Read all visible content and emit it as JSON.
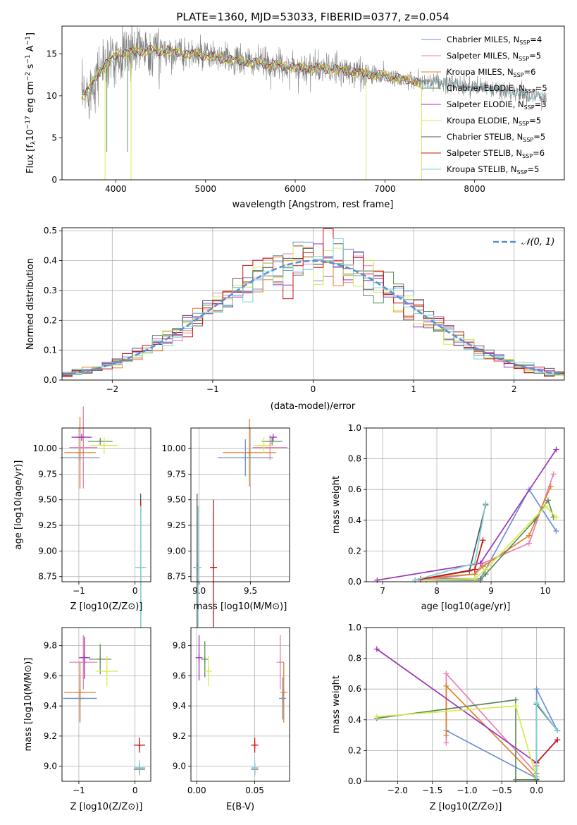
{
  "colors": {
    "series": [
      "#6d8fd8",
      "#e87fb5",
      "#e07f2a",
      "#5c8a5a",
      "#9b35b5",
      "#d4ec4c",
      "#555555",
      "#c81414",
      "#7fd2d8"
    ],
    "gray": "#808080",
    "gauss": "#5b8fd5"
  },
  "chart_data": [
    {
      "id": "spectrum",
      "type": "line",
      "title": "PLATE=1360, MJD=53033, FIBERID=0377, z=0.054",
      "xlabel": "wavelength [Angstrom, rest frame]",
      "ylabel": "Flux [f_λ10^-17 erg cm^-2 s^-1 A^-1]",
      "xlim": [
        3400,
        9000
      ],
      "ylim": [
        0,
        18.3
      ],
      "xticks": [
        4000,
        5000,
        6000,
        7000,
        8000
      ],
      "yticks": [
        0,
        5,
        10,
        15
      ],
      "grid": false,
      "legend_loc": "upper right",
      "series": [
        {
          "name": "Chabrier MILES, N_SSP=4"
        },
        {
          "name": "Salpeter MILES, N_SSP=5"
        },
        {
          "name": "Kroupa MILES, N_SSP=6"
        },
        {
          "name": "Chabrier ELODIE, N_SSP=5"
        },
        {
          "name": "Salpeter ELODIE, N_SSP=3"
        },
        {
          "name": "Kroupa ELODIE, N_SSP=5"
        },
        {
          "name": "Chabrier STELIB, N_SSP=5"
        },
        {
          "name": "Salpeter STELIB, N_SSP=6"
        },
        {
          "name": "Kroupa STELIB, N_SSP=5"
        }
      ],
      "model_curve": {
        "x": [
          3620,
          3700,
          3800,
          3900,
          4000,
          4200,
          4400,
          4600,
          4800,
          5000,
          5200,
          5400,
          5600,
          5800,
          6000,
          6200,
          6400,
          6600,
          6800,
          7000,
          7200,
          7400,
          7600,
          7800,
          8000,
          8200,
          8400,
          8600,
          8800
        ],
        "y": [
          9.8,
          10.6,
          12.8,
          13.8,
          14.9,
          15.3,
          15.4,
          15.3,
          15.0,
          14.8,
          14.4,
          14.1,
          13.9,
          13.6,
          13.4,
          13.3,
          13.2,
          12.9,
          12.6,
          12.4,
          12.0,
          11.6,
          11.5,
          11.3,
          11.0,
          10.8,
          10.4,
          10.1,
          9.7
        ]
      }
    },
    {
      "id": "residuals",
      "type": "line",
      "xlabel": "(data-model)/error",
      "ylabel": "Normed distribution",
      "xlim": [
        -2.5,
        2.5
      ],
      "ylim": [
        0,
        0.51
      ],
      "xticks": [
        -2,
        -1,
        0,
        1,
        2
      ],
      "yticks": [
        0.0,
        0.1,
        0.2,
        0.3,
        0.4,
        0.5
      ],
      "grid": true,
      "legend_loc": "upper right",
      "gauss_label": "𝒩(0, 1)"
    },
    {
      "id": "age_vs_Z",
      "type": "scatter",
      "xlabel": "Z [log10(Z/Z⊙)]",
      "ylabel": "age [log10(age/yr)]",
      "xlim": [
        -1.3,
        0.28
      ],
      "ylim": [
        8.7,
        10.2
      ],
      "xticks": [
        -1,
        0
      ],
      "yticks": [
        8.75,
        9.0,
        9.25,
        9.5,
        9.75,
        10.0
      ],
      "grid": true,
      "points": [
        {
          "x": -0.98,
          "y": 9.91,
          "xerr": 0.35,
          "yerr": 0.0,
          "c": 0
        },
        {
          "x": -0.92,
          "y": 10.01,
          "xerr": 0.25,
          "yerr": 0.4,
          "c": 1
        },
        {
          "x": -0.98,
          "y": 9.96,
          "xerr": 0.28,
          "yerr": 0.35,
          "c": 2
        },
        {
          "x": -0.62,
          "y": 10.07,
          "xerr": 0.22,
          "yerr": 0.0,
          "c": 3
        },
        {
          "x": -0.95,
          "y": 10.11,
          "xerr": 0.18,
          "yerr": 0.0,
          "c": 4
        },
        {
          "x": -0.55,
          "y": 10.03,
          "xerr": 0.25,
          "yerr": 0.08,
          "c": 5
        },
        {
          "x": 0.1,
          "y": 8.84,
          "xerr": 0.0,
          "yerr": 0.72,
          "c": 6
        },
        {
          "x": 0.1,
          "y": 8.84,
          "xerr": 0.0,
          "yerr": 0.66,
          "c": 7
        },
        {
          "x": 0.1,
          "y": 8.84,
          "xerr": 0.1,
          "yerr": 0.6,
          "c": 8
        }
      ]
    },
    {
      "id": "age_vs_mass",
      "type": "scatter",
      "xlabel": "mass [log10(M/M⊙)]",
      "ylabel": "",
      "xlim": [
        8.92,
        9.88
      ],
      "ylim": [
        8.7,
        10.2
      ],
      "xticks": [
        9.0,
        9.5
      ],
      "yticks": [
        8.75,
        9.0,
        9.25,
        9.5,
        9.75,
        10.0
      ],
      "grid": true,
      "points": [
        {
          "x": 9.45,
          "y": 9.91,
          "xerr": 0.27,
          "yerr": 0.18,
          "c": 0
        },
        {
          "x": 9.69,
          "y": 10.01,
          "xerr": 0.17,
          "yerr": 0.12,
          "c": 1
        },
        {
          "x": 9.49,
          "y": 9.96,
          "xerr": 0.26,
          "yerr": 0.33,
          "c": 2
        },
        {
          "x": 9.71,
          "y": 10.07,
          "xerr": 0.1,
          "yerr": 0.0,
          "c": 3
        },
        {
          "x": 9.72,
          "y": 10.11,
          "xerr": 0.0,
          "yerr": 0.0,
          "c": 4
        },
        {
          "x": 9.63,
          "y": 10.03,
          "xerr": 0.1,
          "yerr": 0.08,
          "c": 5
        },
        {
          "x": 8.98,
          "y": 8.84,
          "xerr": 0.0,
          "yerr": 0.72,
          "c": 6
        },
        {
          "x": 9.14,
          "y": 8.84,
          "xerr": 0.03,
          "yerr": 0.66,
          "c": 7
        },
        {
          "x": 8.99,
          "y": 8.84,
          "xerr": 0.03,
          "yerr": 0.6,
          "c": 8
        }
      ]
    },
    {
      "id": "massweight_vs_age",
      "type": "line",
      "xlabel": "age [log10(age/yr)]",
      "ylabel": "mass weight",
      "xlim": [
        6.7,
        10.35
      ],
      "ylim": [
        0,
        1.0
      ],
      "xticks": [
        7,
        8,
        9,
        10
      ],
      "yticks": [
        0.0,
        0.2,
        0.4,
        0.6,
        0.8,
        1.0
      ],
      "grid": true,
      "series": [
        {
          "c": 0,
          "x": [
            7.7,
            8.8,
            8.9,
            9.7,
            10.2
          ],
          "y": [
            0.02,
            0.02,
            0.08,
            0.6,
            0.33
          ]
        },
        {
          "c": 1,
          "x": [
            7.7,
            8.7,
            8.85,
            9.7,
            10.15
          ],
          "y": [
            0.01,
            0.05,
            0.12,
            0.25,
            0.7
          ]
        },
        {
          "c": 2,
          "x": [
            7.7,
            8.7,
            8.85,
            9.7,
            10.1
          ],
          "y": [
            0.02,
            0.05,
            0.1,
            0.3,
            0.62
          ]
        },
        {
          "c": 3,
          "x": [
            7.8,
            8.8,
            8.9,
            9.8,
            10.05,
            10.15
          ],
          "y": [
            0.01,
            0.01,
            0.05,
            0.4,
            0.53,
            0.42
          ]
        },
        {
          "c": 4,
          "x": [
            6.9,
            8.8,
            10.2
          ],
          "y": [
            0.01,
            0.12,
            0.86
          ]
        },
        {
          "c": 5,
          "x": [
            7.8,
            8.7,
            8.9,
            10.0,
            10.2
          ],
          "y": [
            0.01,
            0.02,
            0.08,
            0.49,
            0.42
          ]
        },
        {
          "c": 6,
          "x": [
            7.6,
            8.6,
            8.9
          ],
          "y": [
            0.01,
            0.07,
            0.5
          ]
        },
        {
          "c": 7,
          "x": [
            7.6,
            8.7,
            8.85
          ],
          "y": [
            0.01,
            0.08,
            0.27
          ]
        },
        {
          "c": 8,
          "x": [
            7.6,
            8.7,
            8.9
          ],
          "y": [
            0.01,
            0.12,
            0.51
          ]
        }
      ]
    },
    {
      "id": "mass_vs_Z",
      "type": "scatter",
      "xlabel": "Z [log10(Z/Z⊙)]",
      "ylabel": "mass [log10(M/M⊙)]",
      "xlim": [
        -1.3,
        0.28
      ],
      "ylim": [
        8.9,
        9.92
      ],
      "xticks": [
        -1,
        0
      ],
      "yticks": [
        9.0,
        9.2,
        9.4,
        9.6,
        9.8
      ],
      "grid": true,
      "points": [
        {
          "x": -0.98,
          "y": 9.45,
          "xerr": 0.3,
          "yerr": 0.15,
          "c": 0
        },
        {
          "x": -0.92,
          "y": 9.69,
          "xerr": 0.25,
          "yerr": 0.18,
          "c": 1
        },
        {
          "x": -0.98,
          "y": 9.49,
          "xerr": 0.28,
          "yerr": 0.2,
          "c": 2
        },
        {
          "x": -0.62,
          "y": 9.71,
          "xerr": 0.2,
          "yerr": 0.1,
          "c": 3
        },
        {
          "x": -0.9,
          "y": 9.72,
          "xerr": 0.1,
          "yerr": 0.14,
          "c": 4
        },
        {
          "x": -0.5,
          "y": 9.63,
          "xerr": 0.2,
          "yerr": 0.1,
          "c": 5
        },
        {
          "x": 0.08,
          "y": 8.98,
          "xerr": 0.1,
          "yerr": 0.04,
          "c": 6
        },
        {
          "x": 0.08,
          "y": 9.14,
          "xerr": 0.1,
          "yerr": 0.05,
          "c": 7
        },
        {
          "x": 0.08,
          "y": 8.99,
          "xerr": 0.1,
          "yerr": 0.05,
          "c": 8
        }
      ]
    },
    {
      "id": "mass_vs_ebv",
      "type": "scatter",
      "xlabel": "E(B-V)",
      "ylabel": "",
      "xlim": [
        -0.005,
        0.08
      ],
      "ylim": [
        8.9,
        9.92
      ],
      "xticks": [
        0.0,
        0.05
      ],
      "yticks": [
        9.0,
        9.2,
        9.4,
        9.6,
        9.8
      ],
      "grid": true,
      "points": [
        {
          "x": 0.074,
          "y": 9.45,
          "xerr": 0,
          "yerr": 0.14,
          "c": 0
        },
        {
          "x": 0.072,
          "y": 9.69,
          "xerr": 0,
          "yerr": 0.18,
          "c": 1
        },
        {
          "x": 0.075,
          "y": 9.49,
          "xerr": 0,
          "yerr": 0.2,
          "c": 2
        },
        {
          "x": 0.007,
          "y": 9.71,
          "xerr": 0,
          "yerr": 0.12,
          "c": 3
        },
        {
          "x": 0.002,
          "y": 9.72,
          "xerr": 0,
          "yerr": 0.15,
          "c": 4
        },
        {
          "x": 0.01,
          "y": 9.63,
          "xerr": 0,
          "yerr": 0.1,
          "c": 5
        },
        {
          "x": 0.05,
          "y": 8.98,
          "xerr": 0,
          "yerr": 0.04,
          "c": 6
        },
        {
          "x": 0.05,
          "y": 9.14,
          "xerr": 0,
          "yerr": 0.05,
          "c": 7
        },
        {
          "x": 0.05,
          "y": 8.99,
          "xerr": 0,
          "yerr": 0.05,
          "c": 8
        }
      ]
    },
    {
      "id": "massweight_vs_Z",
      "type": "line",
      "xlabel": "Z [log10(Z/Z⊙)]",
      "ylabel": "mass weight",
      "xlim": [
        -2.45,
        0.4
      ],
      "ylim": [
        0,
        1.0
      ],
      "xticks": [
        -2.0,
        -1.5,
        -1.0,
        -0.5,
        0.0
      ],
      "yticks": [
        0.0,
        0.2,
        0.4,
        0.6,
        0.8,
        1.0
      ],
      "grid": true,
      "series": [
        {
          "c": 0,
          "x": [
            -1.3,
            0.0,
            0.0,
            0.3
          ],
          "y": [
            0.33,
            0.02,
            0.6,
            0.33
          ]
        },
        {
          "c": 1,
          "x": [
            -1.3,
            -1.3,
            0.0,
            0.0
          ],
          "y": [
            0.25,
            0.7,
            0.05,
            0.12
          ]
        },
        {
          "c": 2,
          "x": [
            -1.3,
            -1.3,
            0.0,
            0.0
          ],
          "y": [
            0.3,
            0.62,
            0.02,
            0.1
          ]
        },
        {
          "c": 3,
          "x": [
            -2.3,
            -0.3,
            -0.3,
            0.0,
            0.0
          ],
          "y": [
            0.41,
            0.53,
            0.01,
            0.01,
            0.05
          ]
        },
        {
          "c": 4,
          "x": [
            -2.3,
            0.0,
            0.3
          ],
          "y": [
            0.86,
            0.12,
            0.27
          ]
        },
        {
          "c": 5,
          "x": [
            -2.3,
            -0.3,
            0.0,
            0.0
          ],
          "y": [
            0.42,
            0.49,
            0.02,
            0.08
          ]
        },
        {
          "c": 6,
          "x": [
            0.0,
            0.0,
            0.3
          ],
          "y": [
            0.01,
            0.5,
            0.33
          ]
        },
        {
          "c": 7,
          "x": [
            0.0,
            0.3
          ],
          "y": [
            0.12,
            0.27
          ]
        },
        {
          "c": 8,
          "x": [
            0.0,
            0.0,
            0.3
          ],
          "y": [
            0.03,
            0.51,
            0.33
          ]
        }
      ]
    }
  ]
}
